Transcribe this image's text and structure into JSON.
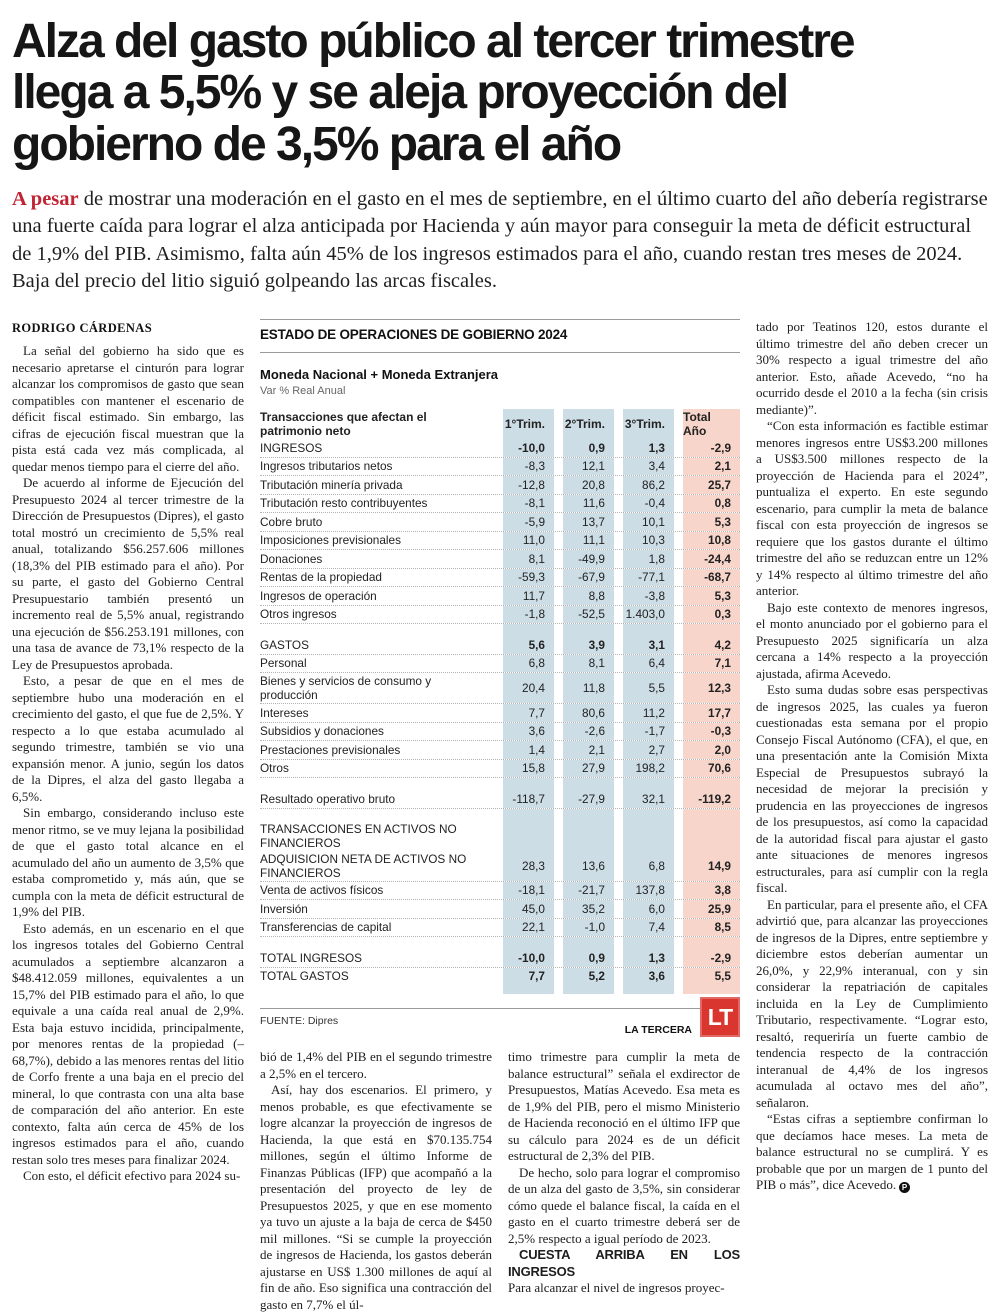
{
  "headline": "Alza del gasto público al tercer trimestre\nllega a 5,5% y se aleja proyección del\ngobierno de 3,5% para el año",
  "lead": {
    "kicker": "A pesar",
    "text": " de mostrar una moderación en el gasto en el mes de septiembre, en el último cuarto del año debería registrarse una fuerte caída para lograr el alza anticipada por Hacienda y aún mayor para conseguir la meta de déficit estructural de 1,9% del PIB. Asimismo, falta aún 45% de los ingresos estimados para el año, cuando restan tres meses de 2024. Baja del precio del litio siguió golpeando las arcas fiscales."
  },
  "colors": {
    "accent_red": "#c22333",
    "logo_red": "#d8362f",
    "band_blue": "#cddde5",
    "band_pink": "#f7d5cb"
  },
  "article": {
    "byline": "RODRIGO CÁRDENAS",
    "endmark": "P",
    "col1": [
      {
        "type": "p",
        "text": "La señal del gobierno ha sido que es necesario apretarse el cinturón para lograr alcanzar los compromisos de gasto que sean compatibles con mantener el escenario de déficit fiscal estimado. Sin embargo, las cifras de ejecución fiscal muestran que la pista está cada vez más complicada, al quedar menos tiempo para el cierre del año."
      },
      {
        "type": "p",
        "text": "De acuerdo al informe de Ejecución del Presupuesto 2024 al tercer trimestre de la Dirección de Presupuestos (Dipres), el gasto total mostró un crecimiento de 5,5% real anual, totalizando $56.257.606 millones (18,3% del PIB estimado para el año). Por su parte, el gasto del Gobierno Central Presupuestario también presentó un incremento real de 5,5% anual, registrando una ejecución de $56.253.191 millones, con una tasa de avance de 73,1% respecto de la Ley de Presupuestos aprobada."
      },
      {
        "type": "p",
        "text": "Esto, a pesar de que en el mes de septiembre hubo una moderación en el crecimiento del gasto, el que fue de 2,5%. Y respecto a lo que estaba acumulado al segundo trimestre, también se vio una expansión menor. A junio, según los datos de la Dipres, el alza del gasto llegaba a 6,5%."
      },
      {
        "type": "p",
        "text": "Sin embargo, considerando incluso este menor ritmo, se ve muy lejana la posibilidad de que el gasto total alcance en el acumulado del año un aumento de 3,5% que estaba comprometido y, más aún, que se cumpla con la meta de déficit estructural de 1,9% del PIB."
      },
      {
        "type": "p",
        "text": "Esto además, en un escenario en el que los ingresos totales del Gobierno Central acumulados a septiembre alcanzaron a $48.412.059 millones, equivalentes a un 15,7% del PIB estimado para el año, lo que equivale a una caída real anual de 2,9%. Esta baja estuvo incidida, principalmente, por menores rentas de la propiedad (–68,7%), debido a las menores rentas del litio de Corfo frente a una baja en el precio del mineral, lo que contrasta con una alta base de comparación del año anterior. En este contexto, falta aún cerca de 45% de los ingresos estimados para el año, cuando restan solo tres meses para finalizar 2024."
      },
      {
        "type": "p",
        "text": "Con esto, el déficit efectivo para 2024 su-"
      }
    ],
    "col2": [
      {
        "type": "p",
        "indent": false,
        "text": "bió de 1,4% del PIB en el segundo trimestre a 2,5% en el tercero."
      },
      {
        "type": "p",
        "text": "Así, hay dos escenarios. El primero, y menos probable, es que efectivamente se logre alcanzar la proyección de ingresos de Hacienda, la que está en $70.135.754 millones, según el último Informe de Finanzas Públicas (IFP) que acompañó a la presentación del proyecto de ley de Presupuestos 2025, y que en ese momento ya tuvo un ajuste a la baja de cerca de $450 mil millones. “Si se cumple la proyección de ingresos de Hacienda, los gastos deberán ajustarse en US$ 1.300 millones de aquí al fin de año. Eso significa una contracción del gasto en 7,7% el úl-"
      }
    ],
    "col3": [
      {
        "type": "p",
        "indent": false,
        "text": "timo trimestre para cumplir la meta de balance estructural” señala el exdirector de Presupuestos, Matías Acevedo. Esa meta es de 1,9% del PIB, pero el mismo Ministerio de Hacienda reconoció en el último IFP que su cálculo para 2024 es de un déficit estructural de 2,3% del PIB."
      },
      {
        "type": "p",
        "text": "De hecho, solo para lograr el compromiso de un alza del gasto de 3,5%, sin considerar cómo quede el balance fiscal, la caída en el gasto en el cuarto trimestre deberá ser de 2,5% respecto a igual período de 2023."
      },
      {
        "type": "subhead",
        "text": "CUESTA ARRIBA EN LOS INGRESOS"
      },
      {
        "type": "p",
        "indent": false,
        "text": "Para alcanzar el nivel de ingresos proyec-"
      }
    ],
    "col4": [
      {
        "type": "p",
        "indent": false,
        "text": "tado por Teatinos 120, estos durante el último trimestre del año deben crecer un 30% respecto a igual trimestre del año anterior. Esto, añade Acevedo, “no ha ocurrido desde el 2010 a la fecha (sin crisis mediante)”."
      },
      {
        "type": "p",
        "text": "“Con esta información es factible estimar menores ingresos entre US$3.200 millones a US$3.500 millones respecto de la proyección de Hacienda para el 2024”, puntualiza el experto. En este segundo escenario, para cumplir la meta de balance fiscal con esta proyección de ingresos se requiere que los gastos durante el último trimestre del año se reduzcan entre un 12% y 14% respecto al último trimestre del año anterior."
      },
      {
        "type": "p",
        "text": "Bajo este contexto de menores ingresos, el monto anunciado por el gobierno para el Presupuesto 2025 significaría un alza cercana a 14% respecto a la proyección ajustada, afirma Acevedo."
      },
      {
        "type": "p",
        "text": "Esto suma dudas sobre esas perspectivas de ingresos 2025, las cuales ya fueron cuestionadas esta semana por el propio Consejo Fiscal Autónomo (CFA), el que, en una presentación ante la Comisión Mixta Especial de Presupuestos subrayó la necesidad de mejorar la precisión y prudencia en las proyecciones de ingresos de los presupuestos, así como la capacidad de la autoridad fiscal para ajustar el gasto ante situaciones de menores ingresos estructurales, para así cumplir con la regla fiscal."
      },
      {
        "type": "p",
        "text": "En particular, para el presente año, el CFA advirtió que, para alcanzar las proyecciones de ingresos de la Dipres, entre septiembre y diciembre estos deberían aumentar un 26,0%, y 22,9% interanual, con y sin considerar la repatriación de capitales incluida en la Ley de Cumplimiento Tributario, respectivamente. “Lograr esto, resaltó, requeriría un fuerte cambio de tendencia respecto de la contracción interanual de 4,4% de los ingresos acumulada al octavo mes del año”, señalaron."
      },
      {
        "type": "p",
        "end": true,
        "text": "“Estas cifras a septiembre confirman lo que decíamos hace meses. La meta de balance estructural no se cumplirá. Y es probable que por un margen de 1 punto del PIB o más”, dice Acevedo."
      }
    ]
  },
  "table": {
    "title": "ESTADO DE OPERACIONES DE GOBIERNO 2024",
    "subtitle": "Moneda Nacional + Moneda Extranjera",
    "unit": "Var % Real Anual",
    "header": {
      "label": "Transacciones que afectan el patrimonio neto",
      "q1": "1°Trim.",
      "q2": "2°Trim.",
      "q3": "3°Trim.",
      "total": "Total Año"
    },
    "rows": [
      {
        "label": "INGRESOS",
        "values": [
          "-10,0",
          "0,9",
          "1,3",
          "-2,9"
        ],
        "style": "bold",
        "dot": true
      },
      {
        "label": "Ingresos tributarios netos",
        "values": [
          "-8,3",
          "12,1",
          "3,4",
          "2,1"
        ],
        "dot": true
      },
      {
        "label": "Tributación minería privada",
        "values": [
          "-12,8",
          "20,8",
          "86,2",
          "25,7"
        ],
        "dot": true
      },
      {
        "label": "Tributación resto contribuyentes",
        "values": [
          "-8,1",
          "11,6",
          "-0,4",
          "0,8"
        ],
        "dot": true
      },
      {
        "label": "Cobre bruto",
        "values": [
          "-5,9",
          "13,7",
          "10,1",
          "5,3"
        ],
        "dot": true
      },
      {
        "label": "Imposiciones previsionales",
        "values": [
          "11,0",
          "11,1",
          "10,3",
          "10,8"
        ],
        "dot": true
      },
      {
        "label": "Donaciones",
        "values": [
          "8,1",
          "-49,9",
          "1,8",
          "-24,4"
        ],
        "dot": true
      },
      {
        "label": "Rentas de la propiedad",
        "values": [
          "-59,3",
          "-67,9",
          "-77,1",
          "-68,7"
        ],
        "dot": true
      },
      {
        "label": "Ingresos de operación",
        "values": [
          "11,7",
          "8,8",
          "-3,8",
          "5,3"
        ],
        "dot": true
      },
      {
        "label": "Otros ingresos",
        "values": [
          "-1,8",
          "-52,5",
          "1.403,0",
          "0,3"
        ],
        "dot": true
      },
      {
        "spacer": true
      },
      {
        "label": "GASTOS",
        "values": [
          "5,6",
          "3,9",
          "3,1",
          "4,2"
        ],
        "style": "bold",
        "dot": true
      },
      {
        "label": "Personal",
        "values": [
          "6,8",
          "8,1",
          "6,4",
          "7,1"
        ],
        "dot": true
      },
      {
        "label": "Bienes y servicios de consumo y producción",
        "values": [
          "20,4",
          "11,8",
          "5,5",
          "12,3"
        ],
        "dot": true
      },
      {
        "label": "Intereses",
        "values": [
          "7,7",
          "80,6",
          "11,2",
          "17,7"
        ],
        "dot": true
      },
      {
        "label": "Subsidios y donaciones",
        "values": [
          "3,6",
          "-2,6",
          "-1,7",
          "-0,3"
        ],
        "dot": true
      },
      {
        "label": "Prestaciones previsionales",
        "values": [
          "1,4",
          "2,1",
          "2,7",
          "2,0"
        ],
        "dot": true
      },
      {
        "label": "Otros",
        "values": [
          "15,8",
          "27,9",
          "198,2",
          "70,6"
        ],
        "dot": true
      },
      {
        "spacer": true
      },
      {
        "label": "Resultado operativo bruto",
        "values": [
          "-118,7",
          "-27,9",
          "32,1",
          "-119,2"
        ],
        "dot": true
      },
      {
        "spacer": true
      },
      {
        "label": "TRANSACCIONES EN ACTIVOS NO FINANCIEROS",
        "values": [
          "",
          "",
          "",
          ""
        ]
      },
      {
        "label": "ADQUISICION NETA DE ACTIVOS NO FINANCIEROS",
        "values": [
          "28,3",
          "13,6",
          "6,8",
          "14,9"
        ],
        "dot": true
      },
      {
        "label": "Venta de activos físicos",
        "values": [
          "-18,1",
          "-21,7",
          "137,8",
          "3,8"
        ],
        "dot": true
      },
      {
        "label": "Inversión",
        "values": [
          "45,0",
          "35,2",
          "6,0",
          "25,9"
        ],
        "dot": true
      },
      {
        "label": "Transferencias de capital",
        "values": [
          "22,1",
          "-1,0",
          "7,4",
          "8,5"
        ],
        "dot": true
      },
      {
        "spacer": true
      },
      {
        "label": "TOTAL INGRESOS",
        "values": [
          "-10,0",
          "0,9",
          "1,3",
          "-2,9"
        ],
        "style": "bold",
        "dot": true
      },
      {
        "label": "TOTAL GASTOS",
        "values": [
          "7,7",
          "5,2",
          "3,6",
          "5,5"
        ],
        "style": "bold"
      },
      {
        "spacer": true,
        "h": 9
      }
    ],
    "source": "FUENTE: Dipres",
    "credit": "LA TERCERA",
    "logo": "LT"
  }
}
